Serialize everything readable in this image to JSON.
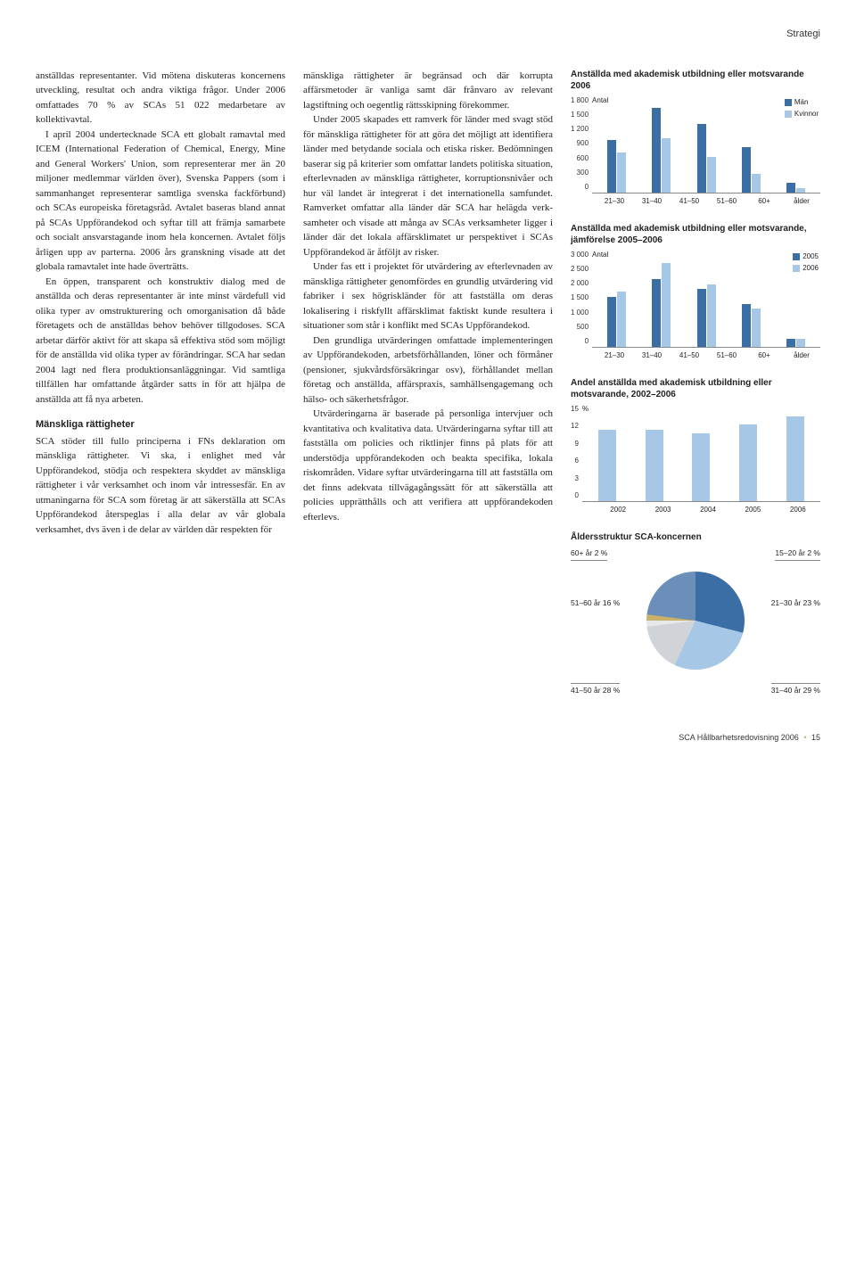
{
  "header": {
    "section": "Strategi"
  },
  "footer": {
    "text": "SCA Hållbarhetsredovisning 2006",
    "page": "15",
    "bullet_color": "#c8b26a"
  },
  "columns": {
    "col1": {
      "paragraphs": [
        "anställdas representanter. Vid mötena diskuteras koncernens utveckling, resultat och andra viktiga frågor. Under 2006 omfattades 70 % av SCAs 51 022 med­arbetare av kollektivavtal.",
        "I april 2004 undertecknade SCA ett globalt ramavtal med ICEM (International Federation of Chemical, Energy, Mine and General Workers' Union, som representerar mer än 20 miljoner medlemmar världen över), Svenska Pappers (som i samman­hanget representerar samtliga svenska fackförbund) och SCAs europeiska före­tagsråd. Avtalet baseras bland annat på SCAs Uppförandekod och syftar till att främja samarbete och socialt ansvarsta­gande inom hela koncernen. Avtalet följs årligen upp av parterna. 2006 års granskning visade att det globala ramav­talet inte hade överträtts.",
        "En öppen, transparent och konstruk­tiv dialog med de anställda och deras representanter är inte minst värdefull vid olika typer av omstrukturering och om­organisation då både företagets och de anställdas behov behöver tillgodoses. SCA arbetar därför aktivt för att skapa så effektiva stöd som möjligt för de anställ­da vid olika typer av förändringar. SCA har sedan 2004 lagt ned flera produk­tionsanläggningar. Vid samtliga tillfällen har omfattande åtgärder satts in för att hjälpa de anställda att få nya arbeten."
      ],
      "subhead": "Mänskliga rättigheter",
      "para_after": "SCA stöder till fullo principerna i FNs deklaration om mänskliga rättigheter. Vi ska, i enlighet med vår Uppförandekod, stödja och respektera skyddet av mänsk­liga rättigheter i vår verksamhet och inom vår intressesfär. En av utmaningarna för SCA som företag är att säkerställa att SCAs Uppförandekod återspeglas i alla delar av vår globala verksamhet, dvs även i de delar av världen där respekten för"
    },
    "col2": {
      "paragraphs": [
        "mänskliga rättigheter är begränsad och där korrupta affärsmetoder är vanliga samt där frånvaro av relevant lagstiftning och oegentlig rättsskipning förekommer.",
        "Under 2005 skapades ett ramverk för länder med svagt stöd för mänskliga rät­tigheter för att göra det möjligt att identi­fiera länder med betydande sociala och etiska risker. Bedömningen baserar sig på kriterier som omfattar landets politiska situation, efterlevnaden av mänskliga rättigheter, korruptionsnivåer och hur väl landet är integrerat i det internatio­nella samfundet. Ramverket omfattar alla länder där SCA har helägda verk­samheter och visade att många av SCAs verksamheter ligger i länder där det lokala affärsklimatet ur perspektivet i SCAs Uppförandekod är åtföljt av risker.",
        "Under fas ett i projektet för utvärde­ring av efterlevnaden av mänskliga rättig­heter genomfördes en grundlig utvärde­ring vid fabriker i sex högriskländer för att fastställa om deras lokalisering i risk­fyllt affärsklimat faktiskt kunde resul­tera i situationer som står i konflikt med SCAs Uppförandekod.",
        "Den grundliga utvärderingen omfat­tade implementeringen av Uppförande­koden, arbetsförhållanden, löner och för­måner (pensioner, sjukvårdsförsäkringar osv), förhållandet mellan företag och anställda, affärspraxis, samhällsengage­mang och hälso- och säkerhetsfrågor.",
        "Utvärderingarna är baserade på per­sonliga intervjuer och kvantitativa och kvalitativa data. Utvärderingarna syftar till att fastställa om policies och riktlin­jer finns på plats för att understödja uppförandekoden och beakta specifika, lokala riskområden. Vidare syftar utvär­deringarna till att fastställa om det finns adekvata tillvägagångssätt för att säker­ställa att policies upprätthålls och att verifiera att uppförandekoden efterlevs."
      ]
    }
  },
  "chart1": {
    "title": "Anställda med akademisk utbildning eller motsvarande 2006",
    "y_label": "Antal",
    "categories": [
      "21–30",
      "31–40",
      "41–50",
      "51–60",
      "60+",
      "ålder"
    ],
    "series": [
      {
        "name": "Män",
        "color": "#3a6ea5",
        "values": [
          1100,
          1800,
          1450,
          950,
          200
        ]
      },
      {
        "name": "Kvinnor",
        "color": "#a7c7e7",
        "values": [
          850,
          1150,
          750,
          380,
          80
        ]
      }
    ],
    "ymax": 1800,
    "yticks": [
      "1 800",
      "1 500",
      "1 200",
      "900",
      "600",
      "300",
      "0"
    ]
  },
  "chart2": {
    "title": "Anställda med akademisk utbildning eller motsvarande, jämförelse 2005–2006",
    "y_label": "Antal",
    "categories": [
      "21–30",
      "31–40",
      "41–50",
      "51–60",
      "60+",
      "ålder"
    ],
    "series": [
      {
        "name": "2005",
        "color": "#3a6ea5",
        "values": [
          1750,
          2400,
          2050,
          1500,
          280
        ]
      },
      {
        "name": "2006",
        "color": "#a7c7e7",
        "values": [
          1950,
          2950,
          2200,
          1330,
          280
        ]
      }
    ],
    "ymax": 3000,
    "yticks": [
      "3 000",
      "2 500",
      "2 000",
      "1 500",
      "1 000",
      "500",
      "0"
    ]
  },
  "chart3": {
    "title": "Andel anställda med akademisk utbildning eller motsvarande, 2002–2006",
    "y_label": "%",
    "categories": [
      "2002",
      "2003",
      "2004",
      "2005",
      "2006"
    ],
    "color": "#a7c7e7",
    "values": [
      12.5,
      12.5,
      12.0,
      13.5,
      15.0
    ],
    "ymax": 15,
    "yticks": [
      "15",
      "12",
      "9",
      "6",
      "3",
      "0"
    ]
  },
  "pie": {
    "title": "Åldersstruktur SCA-koncernen",
    "slices": [
      {
        "label": "15–20 år 2 %",
        "pct": 2,
        "color": "#c8b26a"
      },
      {
        "label": "21–30 år 23 %",
        "pct": 23,
        "color": "#6b8fb8"
      },
      {
        "label": "31–40 år 29 %",
        "pct": 29,
        "color": "#3a6ea5"
      },
      {
        "label": "41–50 år 28 %",
        "pct": 28,
        "color": "#a7c7e7"
      },
      {
        "label": "51–60 år 16 %",
        "pct": 16,
        "color": "#d0d4d8"
      },
      {
        "label": "60+ år 2 %",
        "pct": 2,
        "color": "#e6e8ea"
      }
    ]
  }
}
